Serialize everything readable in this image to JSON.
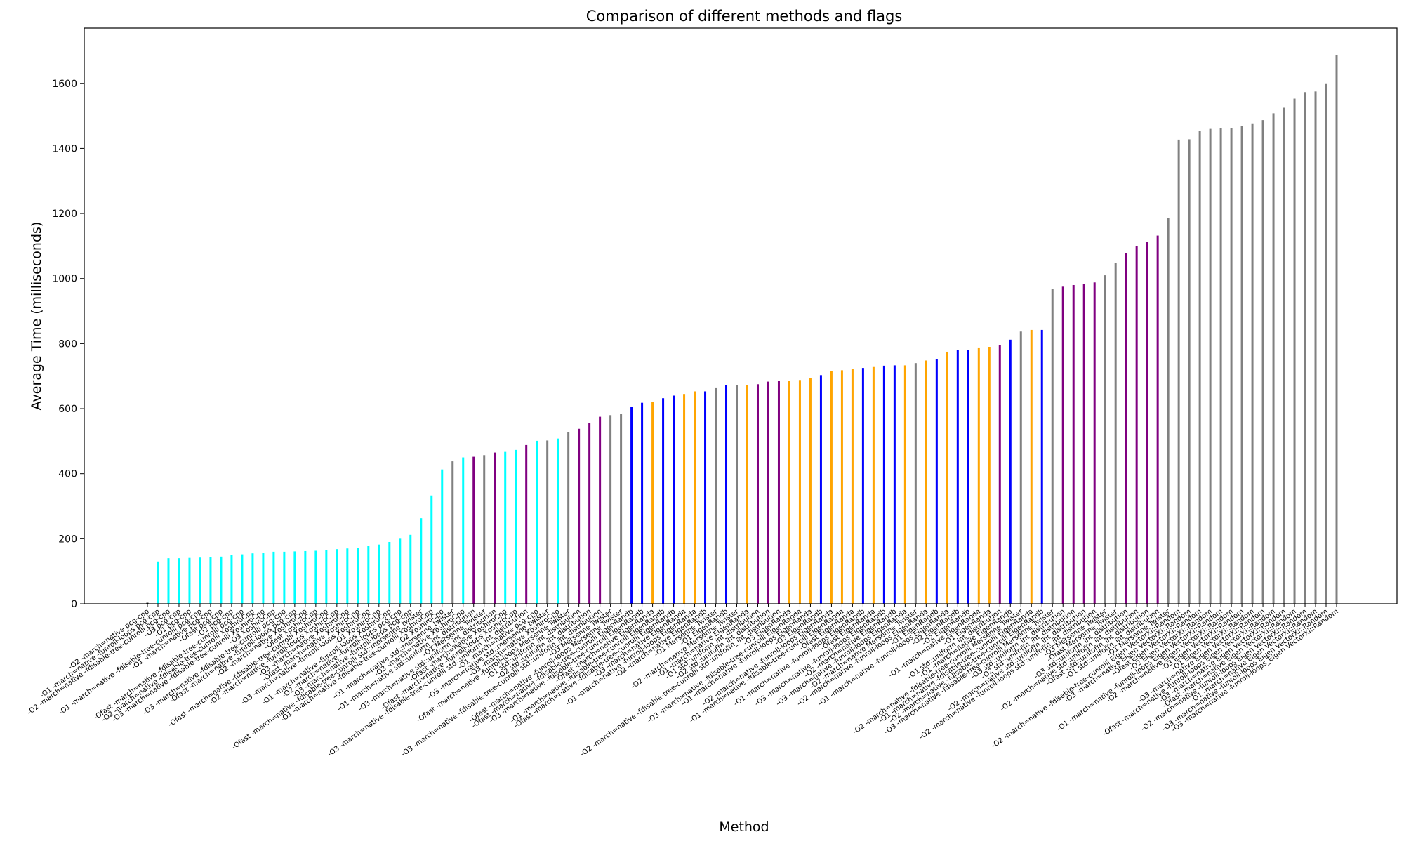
{
  "chart_data": {
    "type": "bar",
    "title": "Comparison of different methods and flags",
    "xlabel": "Method",
    "ylabel": "Average Time (milliseconds)",
    "ylim": [
      0,
      1770
    ],
    "yticks": [
      0,
      200,
      400,
      600,
      800,
      1000,
      1200,
      1400,
      1600
    ],
    "grid": false,
    "legend": "none",
    "colors": {
      "pcg": "#000000",
      "xoshiro": "#00ffff",
      "mt": "#808080",
      "eigen_randa": "#ffa500",
      "eigen_randb": "#0000ff",
      "dist": "#800080",
      "vectorxi": "#808080"
    },
    "bars": [
      {
        "label": "-O2 -march=native pcg-cpp",
        "value": 3,
        "color": "#000000"
      },
      {
        "label": "-O1 -march=native -funroll-loops pcg-cpp",
        "value": 130,
        "color": "#00ffff"
      },
      {
        "label": "-O2 -march=native -fdisable-tree-cunrolli pcg-cpp",
        "value": 140,
        "color": "#00ffff"
      },
      {
        "label": "-O3 pcg-cpp",
        "value": 140,
        "color": "#00ffff"
      },
      {
        "label": "-O1 pcg-cpp",
        "value": 141,
        "color": "#00ffff"
      },
      {
        "label": "-O1 -march=native -fdisable-tree-cunrolli pcg-cpp",
        "value": 142,
        "color": "#00ffff"
      },
      {
        "label": "-O1 -march=native pcg-cpp",
        "value": 143,
        "color": "#00ffff"
      },
      {
        "label": "-Ofast pcg-cpp",
        "value": 145,
        "color": "#00ffff"
      },
      {
        "label": "-O2 pcg-cpp",
        "value": 150,
        "color": "#00ffff"
      },
      {
        "label": "-Ofast -march=native -fdisable-tree-cunrolli pcg-cpp",
        "value": 152,
        "color": "#00ffff"
      },
      {
        "label": "-O2 -march=native -fdisable-tree-cunrolli XoshiroCpp",
        "value": 155,
        "color": "#00ffff"
      },
      {
        "label": "-O3 -march=native -fdisable-tree-cunrolli XoshiroCpp",
        "value": 157,
        "color": "#00ffff"
      },
      {
        "label": "-O3 XoshiroCpp",
        "value": 160,
        "color": "#00ffff"
      },
      {
        "label": "-O3 -march=native -fdisable-tree-cunrolli pcg-cpp",
        "value": 160,
        "color": "#00ffff"
      },
      {
        "label": "-Ofast -march=native -funroll-loops pcg-cpp",
        "value": 161,
        "color": "#00ffff"
      },
      {
        "label": "-O2 -march=native XoshiroCpp",
        "value": 162,
        "color": "#00ffff"
      },
      {
        "label": "-Ofast XoshiroCpp",
        "value": 163,
        "color": "#00ffff"
      },
      {
        "label": "-Ofast -march=native -fdisable-tree-cunrolli XoshiroCpp",
        "value": 165,
        "color": "#00ffff"
      },
      {
        "label": "-O2 -march=native -funroll-loops XoshiroCpp",
        "value": 168,
        "color": "#00ffff"
      },
      {
        "label": "-O3 -march=native XoshiroCpp",
        "value": 170,
        "color": "#00ffff"
      },
      {
        "label": "-Ofast -march=native XoshiroCpp",
        "value": 172,
        "color": "#00ffff"
      },
      {
        "label": "-O3 -march=native -funroll-loops XoshiroCpp",
        "value": 178,
        "color": "#00ffff"
      },
      {
        "label": "-O1 XoshiroCpp",
        "value": 182,
        "color": "#00ffff"
      },
      {
        "label": "-O1 -march=native -funroll-loops XoshiroCpp",
        "value": 190,
        "color": "#00ffff"
      },
      {
        "label": "-O2 -march=native -funroll-loops pcg-cpp",
        "value": 200,
        "color": "#00ffff"
      },
      {
        "label": "-O3 -march=native -funroll-loops pcg-cpp",
        "value": 212,
        "color": "#00ffff"
      },
      {
        "label": "-Ofast -march=native -fdisable-tree-cunrolli std::mersenne_twister",
        "value": 263,
        "color": "#00ffff"
      },
      {
        "label": "-O1 -march=native -fdisable-tree-cunrolli XoshiroCpp",
        "value": 333,
        "color": "#00ffff"
      },
      {
        "label": "-O2 XoshiroCpp",
        "value": 413,
        "color": "#00ffff"
      },
      {
        "label": "-O1 -march=native std::mersenne_twister",
        "value": 438,
        "color": "#808080"
      },
      {
        "label": "-O3 -march=native XoshiroCpp",
        "value": 450,
        "color": "#00ffff"
      },
      {
        "label": "-O1 -march=native std::uniform_int_distribution",
        "value": 452,
        "color": "#800080"
      },
      {
        "label": "-O1 Mersenne Twister",
        "value": 457,
        "color": "#808080"
      },
      {
        "label": "-O3 -march=native std::uniform_int_distribution",
        "value": 465,
        "color": "#800080"
      },
      {
        "label": "-Ofast -march=native XoshiroCpp",
        "value": 467,
        "color": "#00ffff"
      },
      {
        "label": "-Ofast -march=native -funroll-loops XoshiroCpp",
        "value": 473,
        "color": "#00ffff"
      },
      {
        "label": "-O3 -march=native -fdisable-tree-cunrolli std::uniform_int_distribution",
        "value": 488,
        "color": "#800080"
      },
      {
        "label": "-O1 -march=native pcg-cpp",
        "value": 501,
        "color": "#00ffff"
      },
      {
        "label": "-O3 -march=native std::mersenne_twister",
        "value": 502,
        "color": "#808080"
      },
      {
        "label": "-O3 -march=native XoshiroCpp",
        "value": 508,
        "color": "#00ffff"
      },
      {
        "label": "-Ofast -march=native -funroll-loops Mersenne Twister",
        "value": 528,
        "color": "#808080"
      },
      {
        "label": "-O1 std::uniform_int_distribution",
        "value": 538,
        "color": "#800080"
      },
      {
        "label": "-O2 std::uniform_int_distribution",
        "value": 555,
        "color": "#800080"
      },
      {
        "label": "-O3 -march=native -fdisable-tree-cunrolli std::uniform_int_distribution",
        "value": 575,
        "color": "#800080"
      },
      {
        "label": "-O3 Mersenne Twister",
        "value": 580,
        "color": "#808080"
      },
      {
        "label": "-Ofast -march=native -funroll-loops Mersenne Twister",
        "value": 583,
        "color": "#808080"
      },
      {
        "label": "-Ofast -march=native -fdisable-tree-cunrolli EigenRandb",
        "value": 605,
        "color": "#0000ff"
      },
      {
        "label": "-O3 -march=native -fdisable-tree-cunrolli EigenRandb",
        "value": 618,
        "color": "#0000ff"
      },
      {
        "label": "-Ofast -march=native EigenRanda",
        "value": 620,
        "color": "#ffa500"
      },
      {
        "label": "-O1 -march=native -fdisable-tree-cunrolli EigenRandb",
        "value": 632,
        "color": "#0000ff"
      },
      {
        "label": "-Ofast -march=native -fdisable-tree-cunrolli EigenRandb",
        "value": 640,
        "color": "#0000ff"
      },
      {
        "label": "-O3 -march=native EigenRanda",
        "value": 645,
        "color": "#ffa500"
      },
      {
        "label": "-O1 -march=native -funroll-loops EigenRanda",
        "value": 653,
        "color": "#ffa500"
      },
      {
        "label": "-O2 -march=native EigenRandb",
        "value": 653,
        "color": "#0000ff"
      },
      {
        "label": "-O1 Mersenne Twister",
        "value": 665,
        "color": "#808080"
      },
      {
        "label": "-O1 EigenRandb",
        "value": 672,
        "color": "#0000ff"
      },
      {
        "label": "-O2 -march=native Mersenne Twister",
        "value": 672,
        "color": "#808080"
      },
      {
        "label": "-O1 -march=native EigenRanda",
        "value": 672,
        "color": "#ffa500"
      },
      {
        "label": "-O1 std::uniform_int_distribution",
        "value": 675,
        "color": "#800080"
      },
      {
        "label": "-O2 std::uniform_int_distribution",
        "value": 683,
        "color": "#800080"
      },
      {
        "label": "-O2 -march=native -fdisable-tree-cunrolli std::uniform_int_distribution",
        "value": 685,
        "color": "#800080"
      },
      {
        "label": "-O3 EigenRanda",
        "value": 686,
        "color": "#ffa500"
      },
      {
        "label": "-O3 -march=native -fdisable-tree-cunrolli EigenRanda",
        "value": 688,
        "color": "#ffa500"
      },
      {
        "label": "-O1 -march=native -funroll-loops EigenRanda",
        "value": 695,
        "color": "#ffa500"
      },
      {
        "label": "-O3 EigenRandb",
        "value": 703,
        "color": "#0000ff"
      },
      {
        "label": "-O2 -march=native -funroll-loops EigenRanda",
        "value": 715,
        "color": "#ffa500"
      },
      {
        "label": "-O1 -march=native -fdisable-tree-cunrolli EigenRanda",
        "value": 718,
        "color": "#ffa500"
      },
      {
        "label": "-Ofast EigenRanda",
        "value": 722,
        "color": "#ffa500"
      },
      {
        "label": "-O1 -march=native -funroll-loops EigenRandb",
        "value": 725,
        "color": "#0000ff"
      },
      {
        "label": "-Ofast EigenRanda",
        "value": 728,
        "color": "#ffa500"
      },
      {
        "label": "-O3 -march=native -funroll-loops EigenRandb",
        "value": 732,
        "color": "#0000ff"
      },
      {
        "label": "-O2 -march=native EigenRandb",
        "value": 733,
        "color": "#0000ff"
      },
      {
        "label": "-O3 -march=native -funroll-loops EigenRanda",
        "value": 733,
        "color": "#ffa500"
      },
      {
        "label": "-O2 -march=native Mersenne Twister",
        "value": 740,
        "color": "#808080"
      },
      {
        "label": "-O2 -march=native -funroll-loops EigenRanda",
        "value": 748,
        "color": "#ffa500"
      },
      {
        "label": "-O1 EigenRandb",
        "value": 752,
        "color": "#0000ff"
      },
      {
        "label": "-O1 -march=native -funroll-loops EigenRanda",
        "value": 775,
        "color": "#ffa500"
      },
      {
        "label": "-O2 EigenRandb",
        "value": 780,
        "color": "#0000ff"
      },
      {
        "label": "-O2 EigenRandb",
        "value": 780,
        "color": "#0000ff"
      },
      {
        "label": "-O1 -march=native EigenRanda",
        "value": 788,
        "color": "#ffa500"
      },
      {
        "label": "-O1 EigenRanda",
        "value": 790,
        "color": "#ffa500"
      },
      {
        "label": "-O1 std::uniform_int_distribution",
        "value": 795,
        "color": "#800080"
      },
      {
        "label": "-O1 -march=native EigenRandb",
        "value": 812,
        "color": "#0000ff"
      },
      {
        "label": "-O2 -march=native -fdisable-tree-cunrolli Mersenne Twister",
        "value": 837,
        "color": "#808080"
      },
      {
        "label": "-O1 -march=native -fdisable-tree-cunrolli EigenRanda",
        "value": 842,
        "color": "#ffa500"
      },
      {
        "label": "-O2 -march=native -fdisable-tree-cunrolli EigenRandb",
        "value": 842,
        "color": "#0000ff"
      },
      {
        "label": "-O3 -march=native -fdisable-tree-cunrolli Mersenne Twister",
        "value": 967,
        "color": "#808080"
      },
      {
        "label": "-O3 std::uniform_int_distribution",
        "value": 975,
        "color": "#800080"
      },
      {
        "label": "-O2 std::uniform_int_distribution",
        "value": 980,
        "color": "#800080"
      },
      {
        "label": "-O2 -march=native std::uniform_int_distribution",
        "value": 983,
        "color": "#800080"
      },
      {
        "label": "-O2 -march=native -funroll-loops std::uniform_int_distribution",
        "value": 988,
        "color": "#800080"
      },
      {
        "label": "-O3 Mersenne Twister",
        "value": 1010,
        "color": "#808080"
      },
      {
        "label": "-Ofast Mersenne Twister",
        "value": 1047,
        "color": "#808080"
      },
      {
        "label": "-O3 std::uniform_int_distribution",
        "value": 1078,
        "color": "#800080"
      },
      {
        "label": "-O2 -march=native std::uniform_int_distribution",
        "value": 1100,
        "color": "#800080"
      },
      {
        "label": "-Ofast -std::uniform_int_distribution",
        "value": 1113,
        "color": "#800080"
      },
      {
        "label": "-O1 std::uniform_int_distribution",
        "value": 1132,
        "color": "#800080"
      },
      {
        "label": "-O1 Mersenne Twister",
        "value": 1187,
        "color": "#808080"
      },
      {
        "label": "-O2 -march=native -fdisable-tree-cunrolli Eigen VectorXi::Random",
        "value": 1427,
        "color": "#808080"
      },
      {
        "label": "-O3 -march=native Eigen VectorXi::Random",
        "value": 1428,
        "color": "#808080"
      },
      {
        "label": "-Ofast Eigen VectorXi::Random",
        "value": 1453,
        "color": "#808080"
      },
      {
        "label": "-O2 Eigen VectorXi::Random",
        "value": 1460,
        "color": "#808080"
      },
      {
        "label": "-O1 -march=native -funroll-loops Eigen VectorXi::Random",
        "value": 1462,
        "color": "#808080"
      },
      {
        "label": "-O2 -march=native Eigen VectorXi::Random",
        "value": 1462,
        "color": "#808080"
      },
      {
        "label": "-O3 Eigen VectorXi::Random",
        "value": 1468,
        "color": "#808080"
      },
      {
        "label": "-O1 Eigen VectorXi::Random",
        "value": 1477,
        "color": "#808080"
      },
      {
        "label": "-O3 -march=native Eigen VectorXi::Random",
        "value": 1487,
        "color": "#808080"
      },
      {
        "label": "-Ofast -march=native -funroll-loops Eigen VectorXi::Random",
        "value": 1508,
        "color": "#808080"
      },
      {
        "label": "-O3 -march=native Eigen VectorXi::Random",
        "value": 1525,
        "color": "#808080"
      },
      {
        "label": "-Ofast -march=native Eigen VectorXi::Random",
        "value": 1553,
        "color": "#808080"
      },
      {
        "label": "-O2 -march=native -funroll-loops Eigen VectorXi::Random",
        "value": 1573,
        "color": "#808080"
      },
      {
        "label": "-O1 -march=native Eigen VectorXi::Random",
        "value": 1575,
        "color": "#808080"
      },
      {
        "label": "-O3 -march=native -funroll-loops Eigen VectorXi::Random",
        "value": 1600,
        "color": "#808080"
      },
      {
        "label": "-O3 -march=native -funroll-loops_Eigen VectorXi::Random",
        "value": 1688,
        "color": "#808080"
      }
    ]
  }
}
